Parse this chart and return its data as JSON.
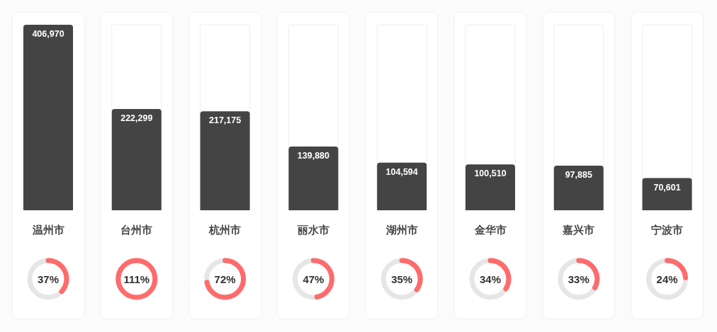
{
  "chart_data": [
    {
      "type": "bar",
      "categories": [
        "温州市",
        "台州市",
        "杭州市",
        "丽水市",
        "湖州市",
        "金华市",
        "嘉兴市",
        "宁波市"
      ],
      "values": [
        406970,
        222299,
        217175,
        139880,
        104594,
        100510,
        97885,
        70601
      ],
      "color": "#444444",
      "value_labels": [
        "406,970",
        "222,299",
        "217,175",
        "139,880",
        "104,594",
        "100,510",
        "97,885",
        "70,601"
      ]
    },
    {
      "type": "other",
      "categories": [
        null,
        null,
        null,
        null,
        null,
        null,
        null,
        null
      ],
      "values": [
        37,
        111,
        72,
        47,
        35,
        34,
        33,
        24
      ],
      "value_labels": [
        "37%",
        "111%",
        "72%",
        "47%",
        "35%",
        "34%",
        "33%",
        "24%"
      ],
      "colors": [
        "#ff6b6b",
        "#ff6b6b",
        "#ff6b6b",
        "#ff6b6b",
        "#ff6b6b",
        "#ff6b6b",
        "#ff6b6b",
        "#ff6b6b"
      ]
    }
  ]
}
